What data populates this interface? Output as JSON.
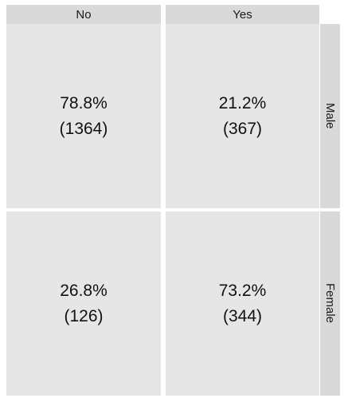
{
  "chart_data": {
    "type": "table",
    "columns": [
      "No",
      "Yes"
    ],
    "rows": [
      "Male",
      "Female"
    ],
    "cells": [
      [
        {
          "percent_label": "78.8%",
          "count_label": "(1364)",
          "percent": 78.8,
          "count": 1364
        },
        {
          "percent_label": "21.2%",
          "count_label": "(367)",
          "percent": 21.2,
          "count": 367
        }
      ],
      [
        {
          "percent_label": "26.8%",
          "count_label": "(126)",
          "percent": 26.8,
          "count": 126
        },
        {
          "percent_label": "73.2%",
          "count_label": "(344)",
          "percent": 73.2,
          "count": 344
        }
      ]
    ],
    "strip_color": "#d9d9d9",
    "panel_color": "#e6e6e6"
  }
}
